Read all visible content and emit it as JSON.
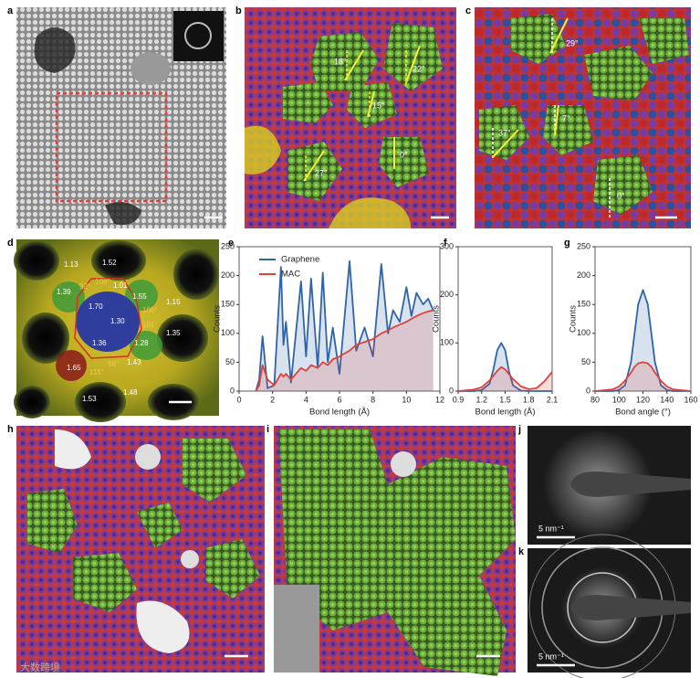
{
  "panel_labels": [
    "a",
    "b",
    "c",
    "d",
    "e",
    "f",
    "g",
    "h",
    "i",
    "j",
    "k"
  ],
  "panel_b": {
    "angles": [
      "18°",
      "22°",
      "15°",
      "27°",
      "0°"
    ]
  },
  "panel_c": {
    "angles": [
      "29°",
      "7°",
      "37°",
      "0°"
    ]
  },
  "panel_d": {
    "lengths": [
      "1.13",
      "1.52",
      "1.39",
      "1.01",
      "1.55",
      "1.15",
      "1.70",
      "1.30",
      "1.35",
      "1.36",
      "1.28",
      "1.65",
      "1.43",
      "1.53",
      "1.48"
    ],
    "angles": [
      "108°",
      "92°",
      "106°",
      "101°",
      "115°",
      "98°"
    ]
  },
  "panel_j": {
    "scale": "5 nm⁻¹"
  },
  "panel_k": {
    "scale": "5 nm⁻¹"
  },
  "watermark": "大数跨境",
  "chart_data": [
    {
      "type": "line",
      "xlabel": "Bond length (Å)",
      "ylabel": "Counts",
      "legend": "upper left",
      "x": [
        1,
        1.2,
        1.4,
        1.7,
        2.1,
        2.5,
        2.65,
        2.8,
        3.1,
        3.7,
        4.0,
        4.3,
        4.7,
        5.0,
        5.3,
        5.6,
        6.0,
        6.6,
        7.0,
        7.5,
        8.0,
        8.5,
        8.9,
        9.2,
        9.6,
        10.0,
        10.3,
        10.6,
        11.0,
        11.3,
        11.6
      ],
      "series": [
        {
          "name": "Graphene",
          "color": "#2f64a8",
          "values": [
            0,
            20,
            95,
            5,
            10,
            215,
            80,
            120,
            15,
            190,
            60,
            195,
            40,
            205,
            50,
            110,
            30,
            225,
            70,
            110,
            60,
            220,
            100,
            140,
            120,
            180,
            130,
            170,
            150,
            160,
            140
          ]
        },
        {
          "name": "MAC",
          "color": "#e0413a",
          "values": [
            0,
            10,
            45,
            20,
            10,
            30,
            25,
            30,
            20,
            40,
            35,
            45,
            40,
            50,
            45,
            55,
            60,
            70,
            80,
            85,
            90,
            100,
            105,
            110,
            115,
            120,
            125,
            130,
            135,
            138,
            140
          ]
        }
      ],
      "xlim": [
        0,
        12
      ],
      "ylim": [
        0,
        250
      ],
      "xticks": [
        0,
        2,
        4,
        6,
        8,
        10,
        12
      ],
      "yticks": [
        0,
        50,
        100,
        150,
        200,
        250
      ]
    },
    {
      "type": "line",
      "xlabel": "Bond length (Å)",
      "ylabel": "Counts",
      "x": [
        0.9,
        1.1,
        1.2,
        1.3,
        1.35,
        1.4,
        1.45,
        1.5,
        1.55,
        1.6,
        1.7,
        1.8,
        1.9,
        2.0,
        2.1
      ],
      "series": [
        {
          "name": null,
          "color": "#2f64a8",
          "values": [
            0,
            0,
            2,
            15,
            45,
            85,
            100,
            85,
            40,
            12,
            1,
            0,
            0,
            0,
            0
          ]
        },
        {
          "name": null,
          "color": "#e0413a",
          "values": [
            0,
            3,
            8,
            22,
            32,
            42,
            50,
            45,
            35,
            25,
            10,
            4,
            6,
            20,
            40
          ]
        }
      ],
      "xlim": [
        0.9,
        2.1
      ],
      "ylim": [
        0,
        300
      ],
      "xticks": [
        0.9,
        1.2,
        1.5,
        1.8,
        2.1
      ],
      "yticks": [
        0,
        100,
        200,
        300
      ]
    },
    {
      "type": "line",
      "xlabel": "Bond angle (°)",
      "ylabel": "Counts",
      "x": [
        80,
        95,
        100,
        105,
        110,
        113,
        116,
        120,
        124,
        127,
        130,
        135,
        140,
        145,
        160
      ],
      "series": [
        {
          "name": null,
          "color": "#2f64a8",
          "values": [
            0,
            0,
            2,
            10,
            50,
            100,
            150,
            175,
            150,
            100,
            50,
            10,
            2,
            0,
            0
          ]
        },
        {
          "name": null,
          "color": "#e0413a",
          "values": [
            0,
            3,
            8,
            18,
            32,
            42,
            48,
            50,
            48,
            42,
            32,
            18,
            8,
            3,
            0
          ]
        }
      ],
      "xlim": [
        80,
        160
      ],
      "ylim": [
        0,
        250
      ],
      "xticks": [
        80,
        100,
        120,
        140,
        160
      ],
      "yticks": [
        0,
        50,
        100,
        150,
        200,
        250
      ]
    }
  ]
}
